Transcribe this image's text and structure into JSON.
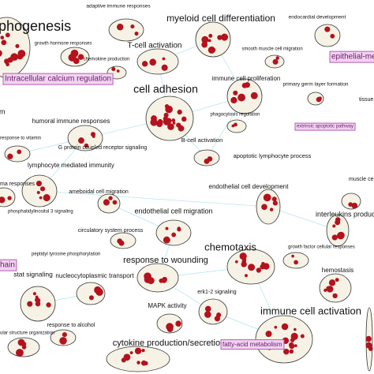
{
  "nodes": [
    {
      "label": "phogenesis"
    },
    {
      "label": "adaptive immune responses"
    },
    {
      "label": "myeloid cell differentiation"
    },
    {
      "label": "endocardial development"
    },
    {
      "label": "growth hormone responses"
    },
    {
      "label": "T-cell activation"
    },
    {
      "label": "chemokine production"
    },
    {
      "label": "smooth muscle cell migration"
    },
    {
      "label": "epithelial-mes"
    },
    {
      "label": "Intracellular calcium regulation"
    },
    {
      "label": "immune cell proliferation"
    },
    {
      "label": "primary germ layer formation"
    },
    {
      "label": "cell adhesion"
    },
    {
      "label": "tissue re"
    },
    {
      "label": "m"
    },
    {
      "label": "phagocytosis regulation"
    },
    {
      "label": "humoral immune responses"
    },
    {
      "label": "extrinsic apoptotic pathway"
    },
    {
      "label": "response to vitamin"
    },
    {
      "label": "B-cell activation"
    },
    {
      "label": "G protein coupled receptor signaling"
    },
    {
      "label": "apoptotic lymphocyte process"
    },
    {
      "label": "lymphocyte mediated immunity"
    },
    {
      "label": "ma responses"
    },
    {
      "label": "endothelial cell development"
    },
    {
      "label": "muscle cell"
    },
    {
      "label": "ameboidal cell migration"
    },
    {
      "label": "interleukins product"
    },
    {
      "label": "phosphatidylinositol 3 signaling"
    },
    {
      "label": "endothelial cell migration"
    },
    {
      "label": "circulatory system process"
    },
    {
      "label": "chemotaxis"
    },
    {
      "label": "growth factor cellular responses"
    },
    {
      "label": "hain"
    },
    {
      "label": "peptidyl tyrosine phosphorylation"
    },
    {
      "label": "response to wounding"
    },
    {
      "label": "hemostasis"
    },
    {
      "label": "stat signaling"
    },
    {
      "label": "nucleocytoplasmic transport"
    },
    {
      "label": "erk1-2 signaling"
    },
    {
      "label": "MAPK activity"
    },
    {
      "label": "immune cell activation"
    },
    {
      "label": "response to alcohol"
    },
    {
      "label": "ular structure organization"
    },
    {
      "label": "cytokine production/secretion"
    },
    {
      "label": "fatty-acid metabolism"
    }
  ]
}
